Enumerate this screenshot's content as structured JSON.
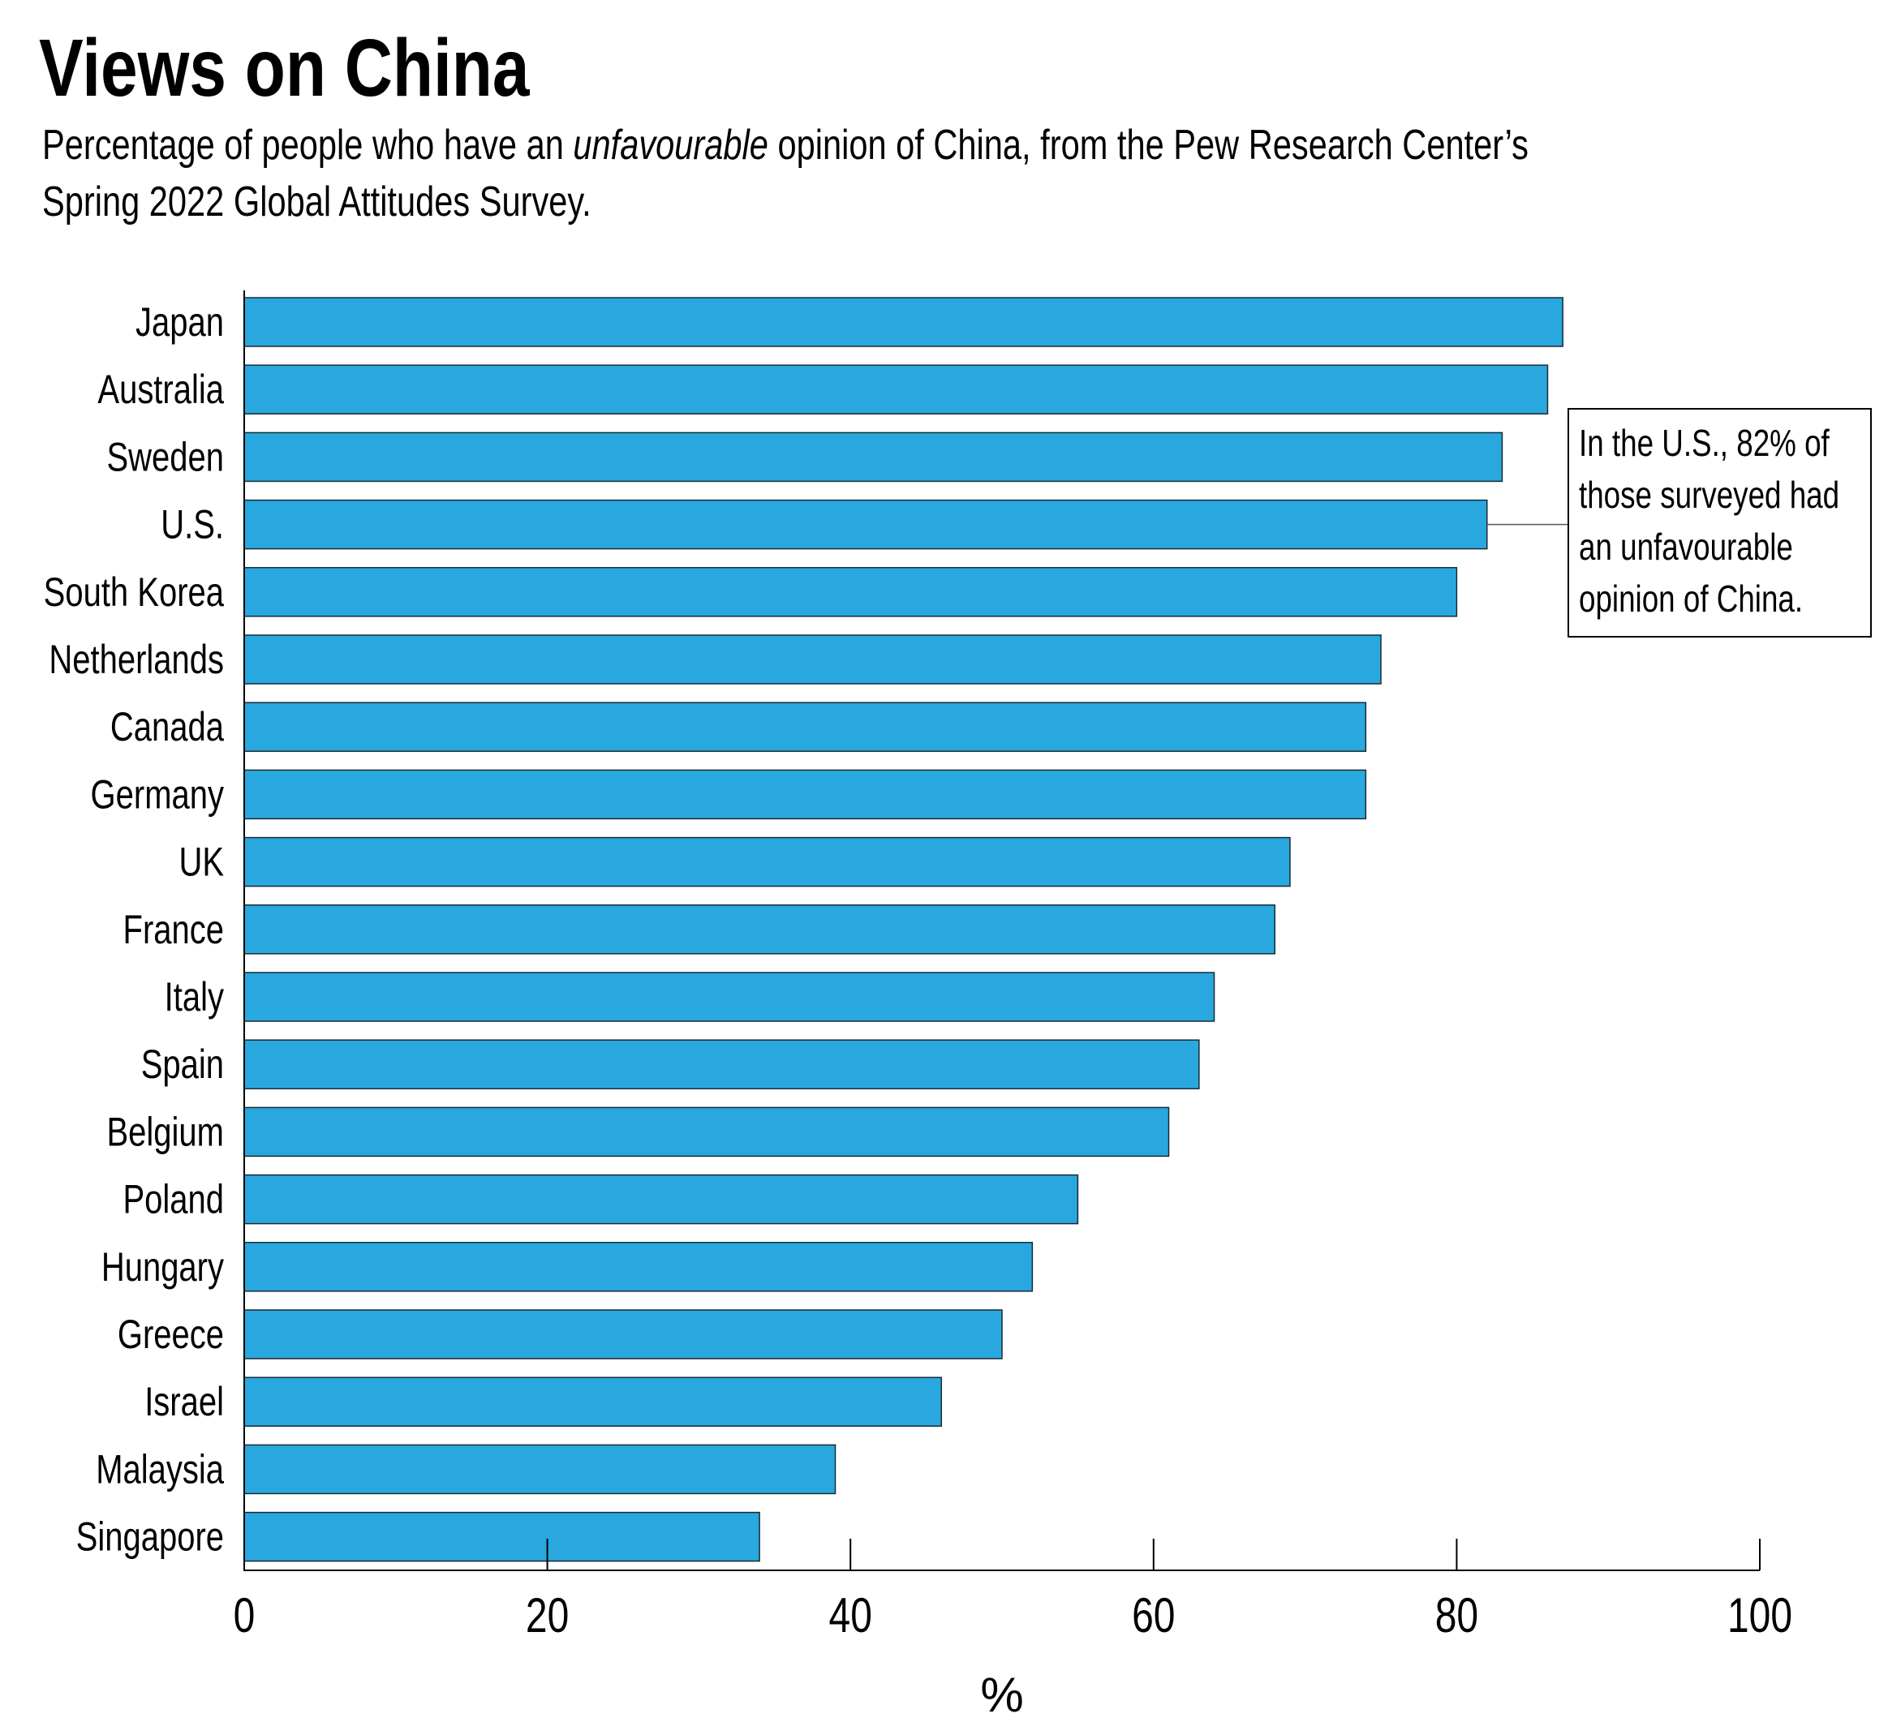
{
  "chart_data": {
    "type": "bar",
    "orientation": "horizontal",
    "title": "Views on China",
    "subtitle_parts": [
      "Percentage of people who have an ",
      "unfavourable",
      " opinion of China, from the Pew Research Center’s"
    ],
    "subtitle_line2": "Spring 2022 Global Attitudes Survey.",
    "categories": [
      "Japan",
      "Australia",
      "Sweden",
      "U.S.",
      "South Korea",
      "Netherlands",
      "Canada",
      "Germany",
      "UK",
      "France",
      "Italy",
      "Spain",
      "Belgium",
      "Poland",
      "Hungary",
      "Greece",
      "Israel",
      "Malaysia",
      "Singapore"
    ],
    "values": [
      87,
      86,
      83,
      82,
      80,
      75,
      74,
      74,
      69,
      68,
      64,
      63,
      61,
      55,
      52,
      50,
      46,
      39,
      34
    ],
    "xlabel": "%",
    "xlim": [
      0,
      100
    ],
    "xticks": [
      "0",
      "20",
      "40",
      "60",
      "80",
      "100"
    ],
    "grid": false,
    "bar_color": "#29a8df",
    "annotation": {
      "target": "U.S.",
      "lines": [
        "In the U.S., 82% of",
        "those surveyed had",
        "an unfavourable",
        "opinion of China."
      ]
    }
  }
}
